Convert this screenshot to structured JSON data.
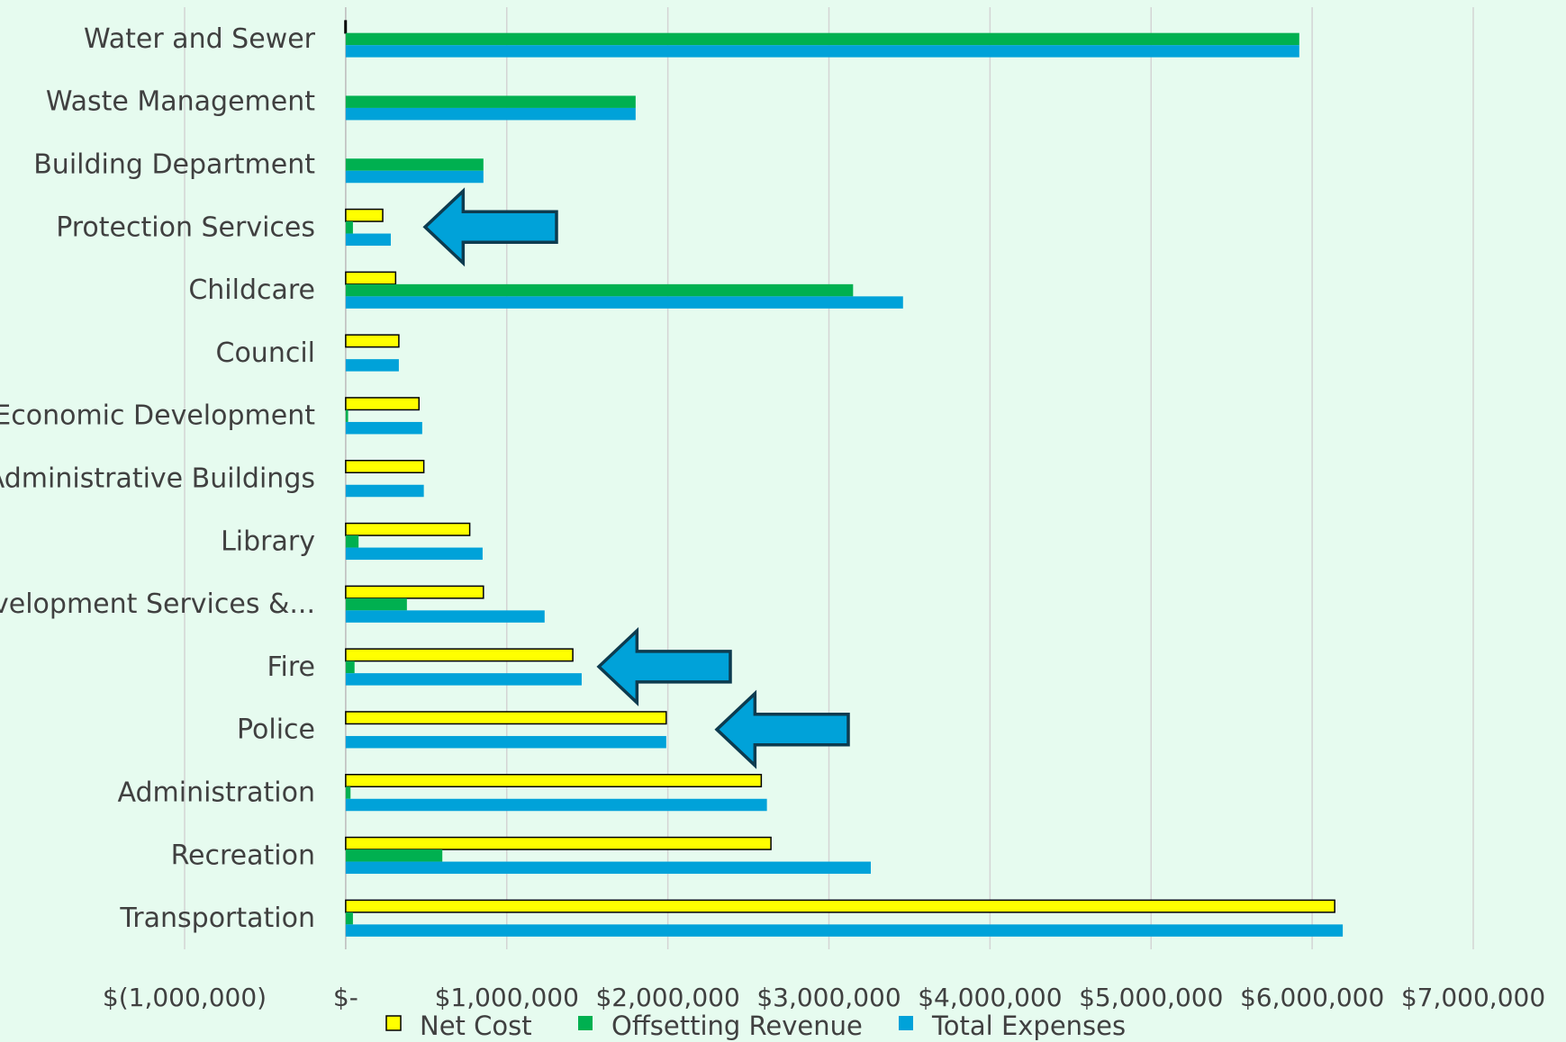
{
  "chart_data": {
    "type": "bar",
    "orientation": "horizontal",
    "title": "",
    "xlabel": "",
    "ylabel": "",
    "categories": [
      "Water and Sewer",
      "Waste Management",
      "Building Department",
      "Protection Services",
      "Childcare",
      "Council",
      "Economic Development",
      "Administrative Buildings",
      "Library",
      "Development Services &...",
      "Fire",
      "Police",
      "Administration",
      "Recreation",
      "Transportation"
    ],
    "series": [
      {
        "name": "Net Cost",
        "color": "#ffff00",
        "values": [
          -5000,
          0,
          0,
          230000,
          310000,
          330000,
          455000,
          485000,
          770000,
          855000,
          1410000,
          1990000,
          2580000,
          2640000,
          6140000
        ]
      },
      {
        "name": "Offsetting Revenue",
        "color": "#00b050",
        "values": [
          5920000,
          1800000,
          855000,
          45000,
          3150000,
          0,
          15000,
          0,
          80000,
          380000,
          55000,
          0,
          30000,
          600000,
          45000
        ]
      },
      {
        "name": "Total Expenses",
        "color": "#00a2d9",
        "values": [
          5920000,
          1800000,
          855000,
          280000,
          3460000,
          330000,
          475000,
          485000,
          850000,
          1235000,
          1465000,
          1990000,
          2615000,
          3260000,
          6190000
        ]
      }
    ],
    "xlim": [
      -1000000,
      7000000
    ],
    "xticks": [
      -1000000,
      0,
      1000000,
      2000000,
      3000000,
      4000000,
      5000000,
      6000000,
      7000000
    ],
    "xtick_labels": [
      "$(1,000,000)",
      "$-",
      "$1,000,000",
      "$2,000,000",
      "$3,000,000",
      "$4,000,000",
      "$5,000,000",
      "$6,000,000",
      "$7,000,000"
    ],
    "grid": true,
    "legend": "bottom",
    "annotations": [
      {
        "type": "arrow",
        "direction": "left",
        "category": "Protection Services",
        "color": "#00a2d9"
      },
      {
        "type": "arrow",
        "direction": "left",
        "category": "Fire",
        "color": "#00a2d9"
      },
      {
        "type": "arrow",
        "direction": "left",
        "category": "Police",
        "color": "#00a2d9"
      }
    ]
  }
}
